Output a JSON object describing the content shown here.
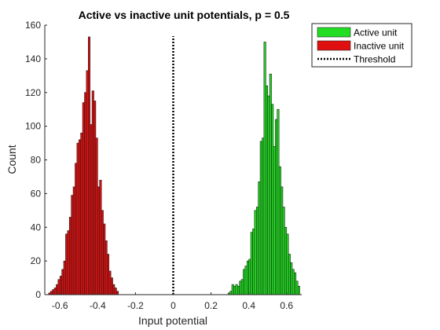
{
  "chart_data": {
    "type": "bar",
    "title": "Active vs inactive unit potentials, p = 0.5",
    "xlabel": "Input potential",
    "ylabel": "Count",
    "xlim": [
      -0.68,
      0.68
    ],
    "ylim": [
      0,
      160
    ],
    "xticks": [
      "-0.6",
      "-0.4",
      "-0.2",
      "0",
      "0.2",
      "0.4",
      "0.6"
    ],
    "yticks": [
      "0",
      "20",
      "40",
      "60",
      "80",
      "100",
      "120",
      "140",
      "160"
    ],
    "grid": false,
    "legend_position": "top-right",
    "bin_width": 0.01,
    "series": [
      {
        "name": "Active unit",
        "color": "#22dd22",
        "bin_start": 0.29,
        "counts": [
          1,
          2,
          6,
          5,
          6,
          5,
          8,
          9,
          15,
          17,
          20,
          21,
          37,
          39,
          50,
          52,
          67,
          91,
          93,
          150,
          124,
          118,
          131,
          113,
          88,
          104,
          110,
          76,
          64,
          52,
          40,
          36,
          24,
          19,
          15,
          13,
          8,
          5
        ]
      },
      {
        "name": "Inactive unit",
        "color": "#e01010",
        "bin_start": -0.66,
        "counts": [
          1,
          2,
          3,
          4,
          6,
          9,
          11,
          15,
          20,
          36,
          38,
          46,
          59,
          64,
          78,
          90,
          92,
          96,
          114,
          120,
          133,
          153,
          101,
          121,
          115,
          93,
          64,
          68,
          50,
          42,
          32,
          24,
          14,
          10,
          6,
          4,
          2
        ]
      },
      {
        "name": "Threshold",
        "style": "dotted",
        "color": "#000000",
        "x": 0
      }
    ]
  }
}
